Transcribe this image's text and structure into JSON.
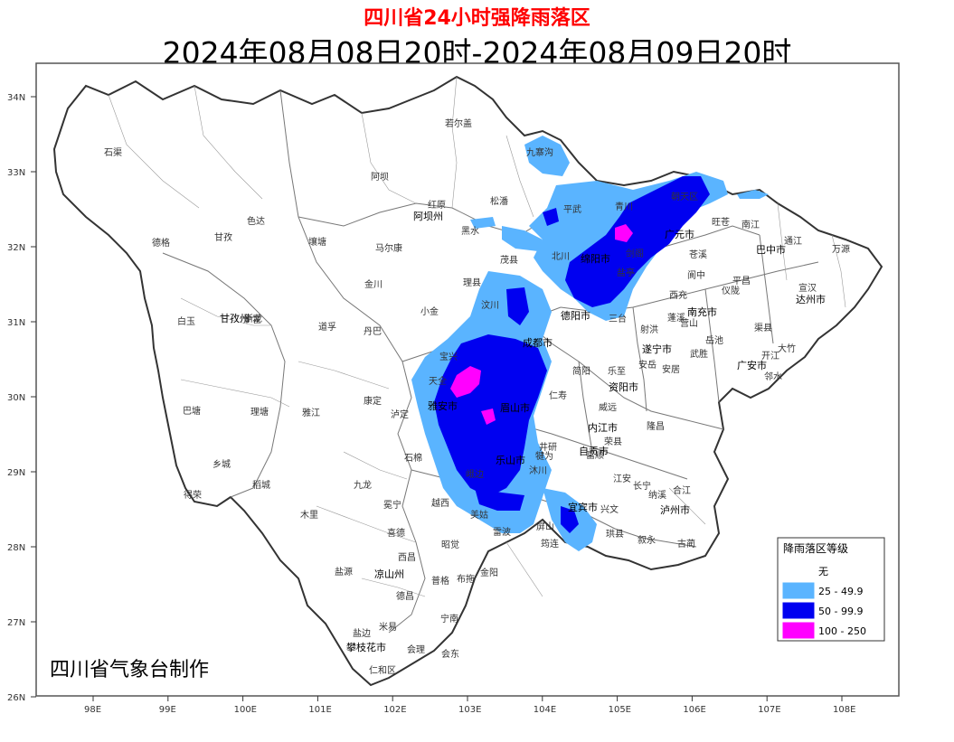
{
  "title": "四川省24小时强降雨落区",
  "subtitle": "2024年08月08日20时-2024年08月09日20时",
  "credit": "四川省气象台制作",
  "axes": {
    "y_labels": [
      "34N",
      "33N",
      "32N",
      "31N",
      "30N",
      "29N",
      "28N",
      "27N",
      "26N"
    ],
    "x_labels": [
      "98E",
      "99E",
      "100E",
      "101E",
      "102E",
      "103E",
      "104E",
      "105E",
      "106E",
      "107E",
      "108E"
    ]
  },
  "legend": {
    "title": "降雨落区等级",
    "items": [
      {
        "label": "无",
        "color": "#ffffff"
      },
      {
        "label": "25 - 49.9",
        "color": "#5ab4ff"
      },
      {
        "label": "50 - 99.9",
        "color": "#0000f0"
      },
      {
        "label": "100 - 250",
        "color": "#ff00ff"
      }
    ]
  },
  "places": {
    "capitals": [
      "阿坝州",
      "甘孜州",
      "凉山州",
      "攀枝花市",
      "成都市",
      "绵阳市",
      "德阳市",
      "广元市",
      "巴中市",
      "达州市",
      "南充市",
      "遂宁市",
      "资阳市",
      "内江市",
      "自贡市",
      "宜宾市",
      "泸州市",
      "乐山市",
      "眉山市",
      "雅安市",
      "广安市"
    ],
    "counties": [
      "石渠",
      "若尔盖",
      "九寨沟",
      "阿坝",
      "红原",
      "松潘",
      "平武",
      "青川",
      "朝天区",
      "旺苍",
      "南江",
      "通江",
      "万源",
      "色达",
      "德格",
      "甘孜",
      "壤塘",
      "马尔康",
      "黑水",
      "茂县",
      "北川",
      "剑阁",
      "苍溪",
      "平昌",
      "宣汉",
      "炉霍",
      "金川",
      "理县",
      "汶川",
      "三台",
      "盐亭",
      "阆中",
      "仪陇",
      "营山",
      "渠县",
      "大竹",
      "开江",
      "白玉",
      "新龙",
      "道孚",
      "丹巴",
      "小金",
      "宝兴",
      "射洪",
      "蓬溪",
      "西充",
      "邻水",
      "岳池",
      "武胜",
      "安岳",
      "简阳",
      "乐至",
      "安居",
      "巴塘",
      "理塘",
      "雅江",
      "康定",
      "泸定",
      "天全",
      "仁寿",
      "威远",
      "隆昌",
      "荣县",
      "富顺",
      "乡城",
      "稻城",
      "九龙",
      "石棉",
      "峨边",
      "沐川",
      "犍为",
      "井研",
      "江安",
      "长宁",
      "纳溪",
      "合江",
      "得荣",
      "木里",
      "冕宁",
      "越西",
      "美姑",
      "屏山",
      "兴文",
      "叙永",
      "古蔺",
      "喜德",
      "昭觉",
      "雷波",
      "筠连",
      "珙县",
      "盐源",
      "西昌",
      "普格",
      "布拖",
      "金阳",
      "德昌",
      "宁南",
      "会东",
      "会理",
      "米易",
      "仁和区",
      "盐边"
    ]
  },
  "rain_regions": [
    {
      "level": "25 - 49.9"
    },
    {
      "level": "50 - 99.9"
    },
    {
      "level": "100 - 250"
    }
  ]
}
